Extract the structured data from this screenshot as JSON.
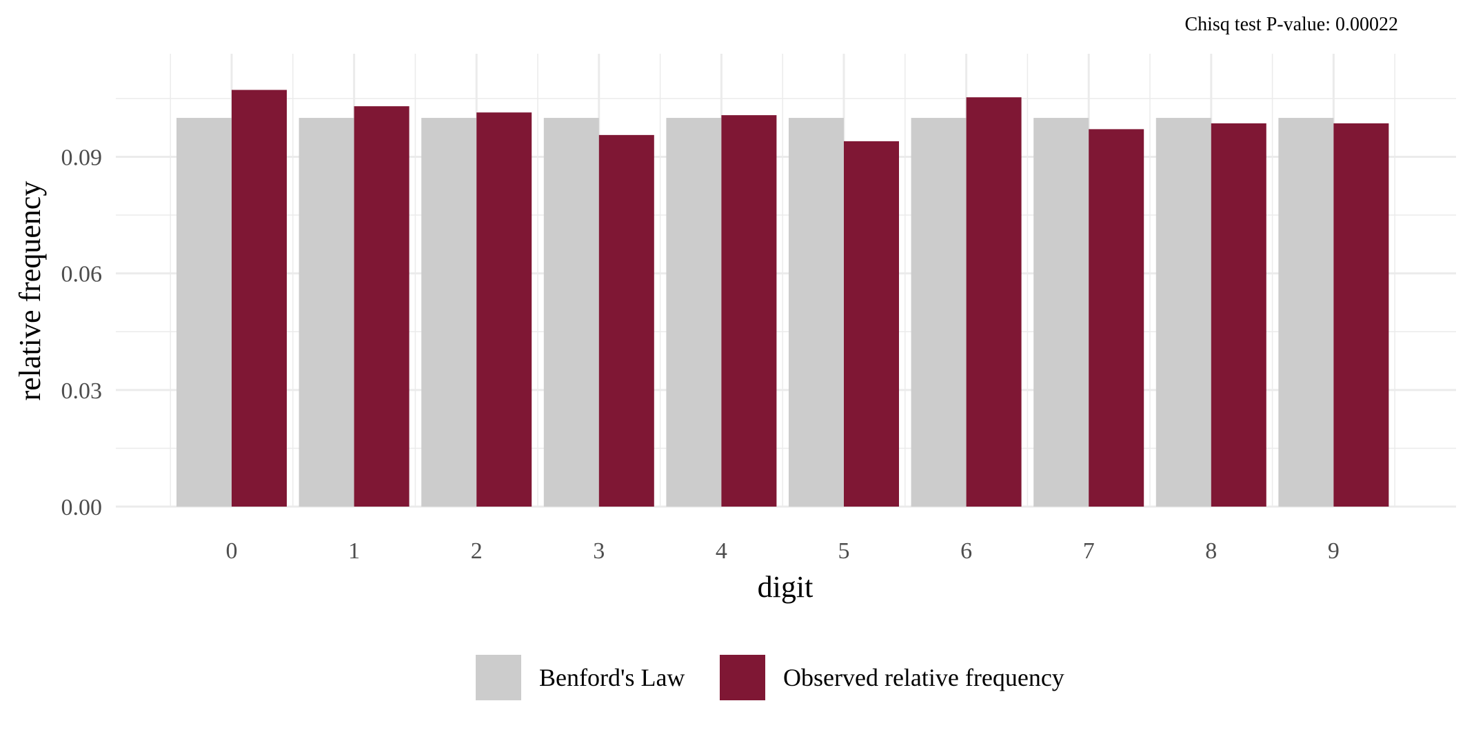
{
  "annotation": "Chisq test P-value: 0.00022",
  "chart_data": {
    "type": "bar",
    "categories": [
      "0",
      "1",
      "2",
      "3",
      "4",
      "5",
      "6",
      "7",
      "8",
      "9"
    ],
    "series": [
      {
        "name": "Benford's Law",
        "color": "#cccccc",
        "values": [
          0.1,
          0.1,
          0.1,
          0.1,
          0.1,
          0.1,
          0.1,
          0.1,
          0.1,
          0.1
        ]
      },
      {
        "name": "Observed relative frequency",
        "color": "#7f1734",
        "values": [
          0.1072,
          0.103,
          0.1014,
          0.0956,
          0.1007,
          0.094,
          0.1053,
          0.0971,
          0.0986,
          0.0986
        ]
      }
    ],
    "title": "",
    "xlabel": "digit",
    "ylabel": "relative frequency",
    "ylim": [
      0,
      0.1165
    ],
    "yticks": [
      0.0,
      0.03,
      0.06,
      0.09
    ],
    "ytick_labels": [
      "0.00",
      "0.03",
      "0.06",
      "0.09"
    ],
    "grid": true,
    "legend_position": "bottom"
  }
}
